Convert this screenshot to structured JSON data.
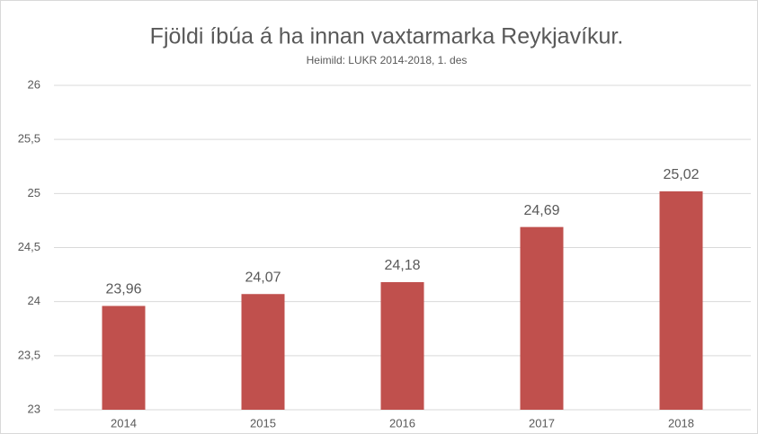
{
  "chart_data": {
    "type": "bar",
    "title": "Fjöldi íbúa á ha innan vaxtarmarka Reykjavíkur.",
    "subtitle": "Heimild: LUKR 2014-2018, 1. des",
    "categories": [
      "2014",
      "2015",
      "2016",
      "2017",
      "2018"
    ],
    "values": [
      23.96,
      24.07,
      24.18,
      24.69,
      25.02
    ],
    "value_labels": [
      "23,96",
      "24,07",
      "24,18",
      "24,69",
      "25,02"
    ],
    "color": "#c0504d",
    "ylim": [
      23,
      26
    ],
    "yticks": [
      23,
      {
        "value": 23.5,
        "label": "23,5"
      },
      24,
      {
        "value": 24.5,
        "label": "24,5"
      },
      25,
      {
        "value": 25.5,
        "label": "25,5"
      },
      26
    ],
    "grid": true
  }
}
